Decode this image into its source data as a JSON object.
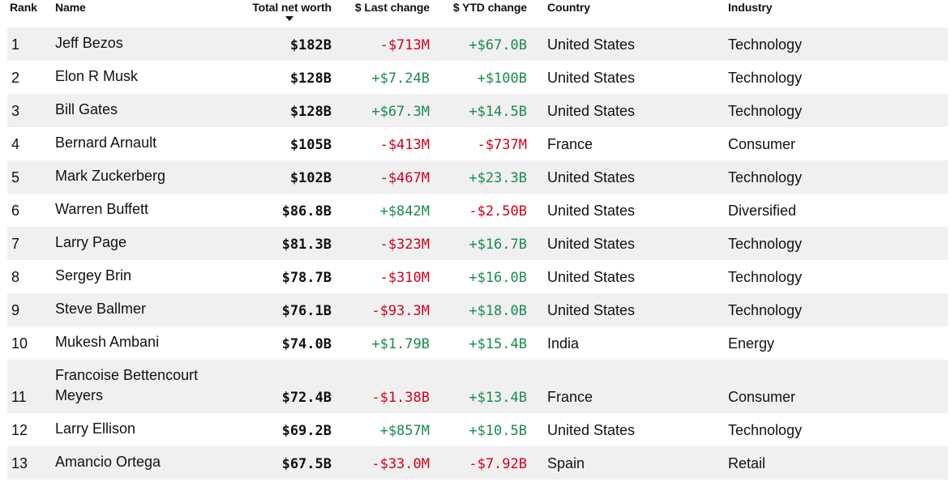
{
  "headers": {
    "rank": "Rank",
    "name": "Name",
    "net_worth": "Total net worth",
    "last_change": "$ Last change",
    "ytd_change": "$ YTD change",
    "country": "Country",
    "industry": "Industry"
  },
  "sort": {
    "column": "Total net worth",
    "direction": "descending"
  },
  "colors": {
    "negative": "#d0021b",
    "positive": "#1a8a4e",
    "stripe": "#f0f0f0"
  },
  "rows": [
    {
      "rank": "1",
      "name": "Jeff Bezos",
      "worth": "$182B",
      "last": "-$713M",
      "ytd": "+$67.0B",
      "country": "United States",
      "industry": "Technology"
    },
    {
      "rank": "2",
      "name": "Elon R Musk",
      "worth": "$128B",
      "last": "+$7.24B",
      "ytd": "+$100B",
      "country": "United States",
      "industry": "Technology"
    },
    {
      "rank": "3",
      "name": "Bill Gates",
      "worth": "$128B",
      "last": "+$67.3M",
      "ytd": "+$14.5B",
      "country": "United States",
      "industry": "Technology"
    },
    {
      "rank": "4",
      "name": "Bernard Arnault",
      "worth": "$105B",
      "last": "-$413M",
      "ytd": "-$737M",
      "country": "France",
      "industry": "Consumer"
    },
    {
      "rank": "5",
      "name": "Mark Zuckerberg",
      "worth": "$102B",
      "last": "-$467M",
      "ytd": "+$23.3B",
      "country": "United States",
      "industry": "Technology"
    },
    {
      "rank": "6",
      "name": "Warren Buffett",
      "worth": "$86.8B",
      "last": "+$842M",
      "ytd": "-$2.50B",
      "country": "United States",
      "industry": "Diversified"
    },
    {
      "rank": "7",
      "name": "Larry Page",
      "worth": "$81.3B",
      "last": "-$323M",
      "ytd": "+$16.7B",
      "country": "United States",
      "industry": "Technology"
    },
    {
      "rank": "8",
      "name": "Sergey Brin",
      "worth": "$78.7B",
      "last": "-$310M",
      "ytd": "+$16.0B",
      "country": "United States",
      "industry": "Technology"
    },
    {
      "rank": "9",
      "name": "Steve Ballmer",
      "worth": "$76.1B",
      "last": "-$93.3M",
      "ytd": "+$18.0B",
      "country": "United States",
      "industry": "Technology"
    },
    {
      "rank": "10",
      "name": "Mukesh Ambani",
      "worth": "$74.0B",
      "last": "+$1.79B",
      "ytd": "+$15.4B",
      "country": "India",
      "industry": "Energy"
    },
    {
      "rank": "11",
      "name_line1": "Francoise Bettencourt",
      "name_line2": "Meyers",
      "worth": "$72.4B",
      "last": "-$1.38B",
      "ytd": "+$13.4B",
      "country": "France",
      "industry": "Consumer"
    },
    {
      "rank": "12",
      "name": "Larry Ellison",
      "worth": "$69.2B",
      "last": "+$857M",
      "ytd": "+$10.5B",
      "country": "United States",
      "industry": "Technology"
    },
    {
      "rank": "13",
      "name": "Amancio Ortega",
      "worth": "$67.5B",
      "last": "-$33.0M",
      "ytd": "-$7.92B",
      "country": "Spain",
      "industry": "Retail"
    }
  ]
}
